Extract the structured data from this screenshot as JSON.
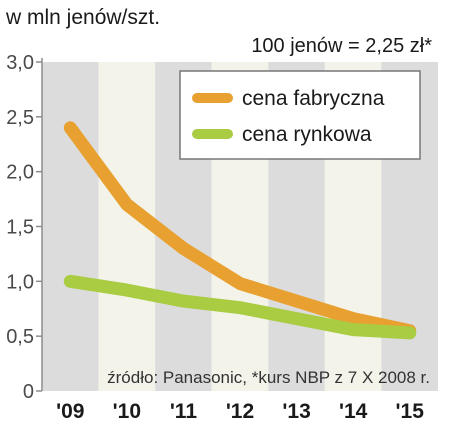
{
  "header": {
    "unit_title": "w mln jenów/szt.",
    "rate_note": "100 jenów = 2,25 zł*"
  },
  "source": "źródło: Panasonic, *kurs NBP z 7 X 2008 r.",
  "colors": {
    "factory": "#e8a131",
    "market": "#a9cc43",
    "band_dark": "#dcdcdc",
    "band_light": "#f3f3ea",
    "axis": "#8c8c8c"
  },
  "chart_data": {
    "type": "line",
    "categories": [
      "'09",
      "'10",
      "'11",
      "'12",
      "'13",
      "'14",
      "'15"
    ],
    "y_tick_labels": [
      "0",
      "0,5",
      "1,0",
      "1,5",
      "2,0",
      "2,5",
      "3,0"
    ],
    "ylim": [
      0,
      3
    ],
    "legend_position": "top-right",
    "series": [
      {
        "name": "cena fabryczna",
        "values": [
          2.4,
          1.7,
          1.3,
          0.98,
          0.82,
          0.66,
          0.55
        ]
      },
      {
        "name": "cena rynkowa",
        "values": [
          1.0,
          0.92,
          0.82,
          0.76,
          0.66,
          0.56,
          0.53
        ]
      }
    ]
  }
}
